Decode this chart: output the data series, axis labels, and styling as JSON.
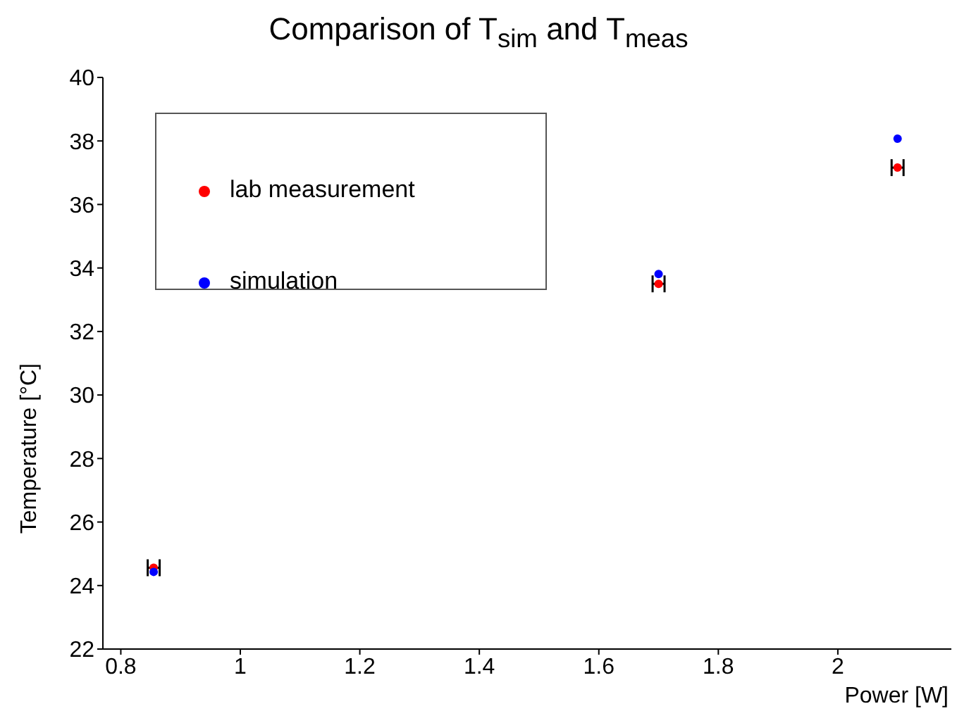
{
  "chart_data": {
    "type": "scatter",
    "title": "Comparison of T$_{sim}$ and T$_{meas}$",
    "xlabel": "Power [W]",
    "ylabel": "Temperature [°C]",
    "xlim": [
      0.77,
      2.19
    ],
    "xticks": [
      0.8,
      1,
      1.2,
      1.4,
      1.6,
      1.8,
      2
    ],
    "ylim": [
      22,
      40
    ],
    "yticks": [
      22,
      24,
      26,
      28,
      30,
      32,
      34,
      36,
      38,
      40
    ],
    "grid": false,
    "legend": "top left",
    "marker": "circle",
    "series": [
      {
        "name": "lab measurement",
        "color": "#ff0000",
        "x": [
          0.855,
          1.7,
          2.1
        ],
        "values": [
          24.56,
          33.5,
          37.16
        ],
        "xerrors": [
          0.01,
          0.01,
          0.01
        ]
      },
      {
        "name": "simulation",
        "color": "#0000ff",
        "x": [
          0.855,
          1.7,
          2.1
        ],
        "values": [
          24.43,
          33.81,
          38.07
        ]
      }
    ]
  }
}
